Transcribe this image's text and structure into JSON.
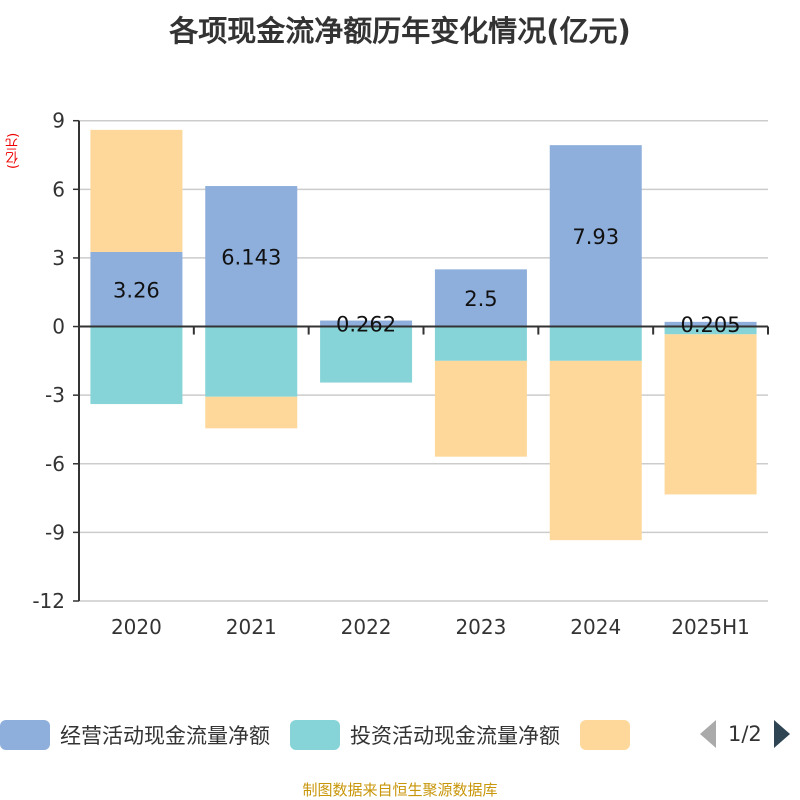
{
  "chart_data": {
    "type": "bar",
    "stacked": true,
    "title": "各项现金流净额历年变化情况(亿元)",
    "ylabel": "(亿元)",
    "categories": [
      "2020",
      "2021",
      "2022",
      "2023",
      "2024",
      "2025H1"
    ],
    "ylim": [
      -12,
      9
    ],
    "yticks": [
      9,
      6,
      3,
      0,
      -3,
      -6,
      -9,
      -12
    ],
    "grid": true,
    "legend_position": "bottom",
    "series": [
      {
        "name": "经营活动现金流量净额",
        "color": "#8eaedb",
        "values": [
          3.26,
          6.143,
          0.262,
          2.5,
          7.93,
          0.205
        ],
        "labels": [
          "3.26",
          "6.143",
          "0.262",
          "2.5",
          "7.93",
          "0.205"
        ]
      },
      {
        "name": "投资活动现金流量净额",
        "color": "#87d4d8",
        "values": [
          -3.39,
          -3.07,
          -2.45,
          -1.5,
          -1.5,
          -0.34
        ]
      },
      {
        "color": "#fed89b",
        "values": [
          5.34,
          -1.38,
          0,
          -4.19,
          -7.84,
          -7.0
        ]
      }
    ]
  },
  "legend": {
    "page": "1/2"
  },
  "source": "制图数据来自恒生聚源数据库"
}
